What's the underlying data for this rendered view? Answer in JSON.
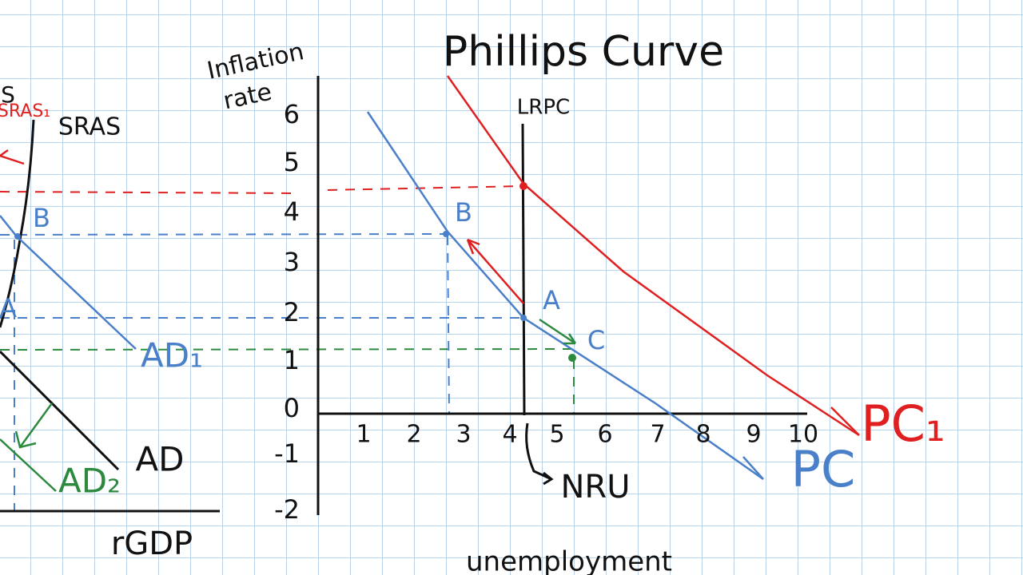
{
  "title": "Phillips Curve",
  "y_axis_label": [
    "Inflation",
    "rate"
  ],
  "x_axis_label": "unemployment",
  "lrpc_label": "LRPC",
  "nru_label": "NRU",
  "yticks": [
    6,
    5,
    4,
    3,
    2,
    1,
    0,
    -1,
    -2
  ],
  "xticks": [
    1,
    2,
    3,
    4,
    5,
    6,
    7,
    8,
    9,
    10
  ],
  "curves": {
    "pc": "PC",
    "pc1": "PC₁"
  },
  "points": {
    "a": "A",
    "b": "B",
    "c": "C"
  },
  "left_graph": {
    "s": "S",
    "sras1": "SRAS₁",
    "sras": "SRAS",
    "b": "B",
    "a": "A",
    "ad1": "AD₁",
    "ad": "AD",
    "ad2": "AD₂",
    "x_axis_label": "rGDP"
  }
}
